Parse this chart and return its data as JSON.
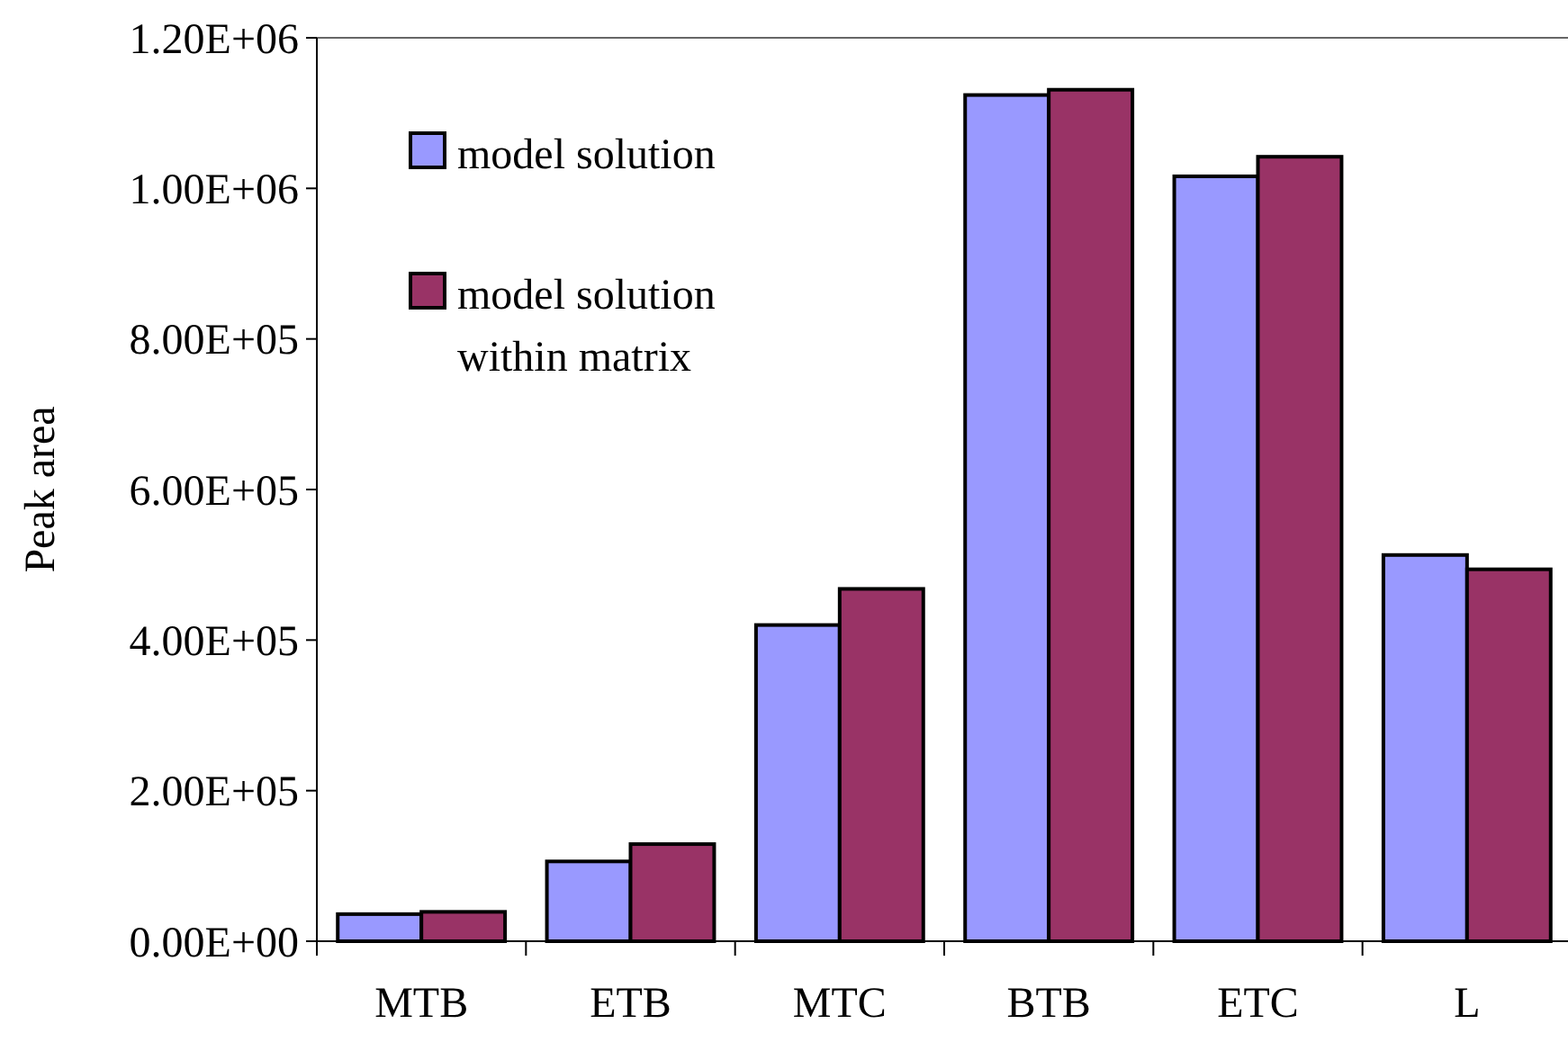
{
  "chart_data": {
    "type": "bar",
    "ylabel": "Peak area",
    "categories": [
      "MTB",
      "ETB",
      "MTC",
      "BTB",
      "ETC",
      "L"
    ],
    "series": [
      {
        "name": "model solution",
        "color": "#9999ff",
        "values": [
          36000,
          106000,
          420000,
          1124000,
          1016000,
          513000
        ]
      },
      {
        "name": "model solution within matrix",
        "color": "#993366",
        "values": [
          39000,
          129000,
          468000,
          1131000,
          1042000,
          494000
        ]
      }
    ],
    "ylim": [
      0,
      1200000
    ],
    "yticks": [
      {
        "value": 0,
        "label": "0.00E+00"
      },
      {
        "value": 200000,
        "label": "2.00E+05"
      },
      {
        "value": 400000,
        "label": "4.00E+05"
      },
      {
        "value": 600000,
        "label": "6.00E+05"
      },
      {
        "value": 800000,
        "label": "8.00E+05"
      },
      {
        "value": 1000000,
        "label": "1.00E+06"
      },
      {
        "value": 1200000,
        "label": "1.20E+06"
      }
    ],
    "grid": false,
    "legend": "top left"
  }
}
